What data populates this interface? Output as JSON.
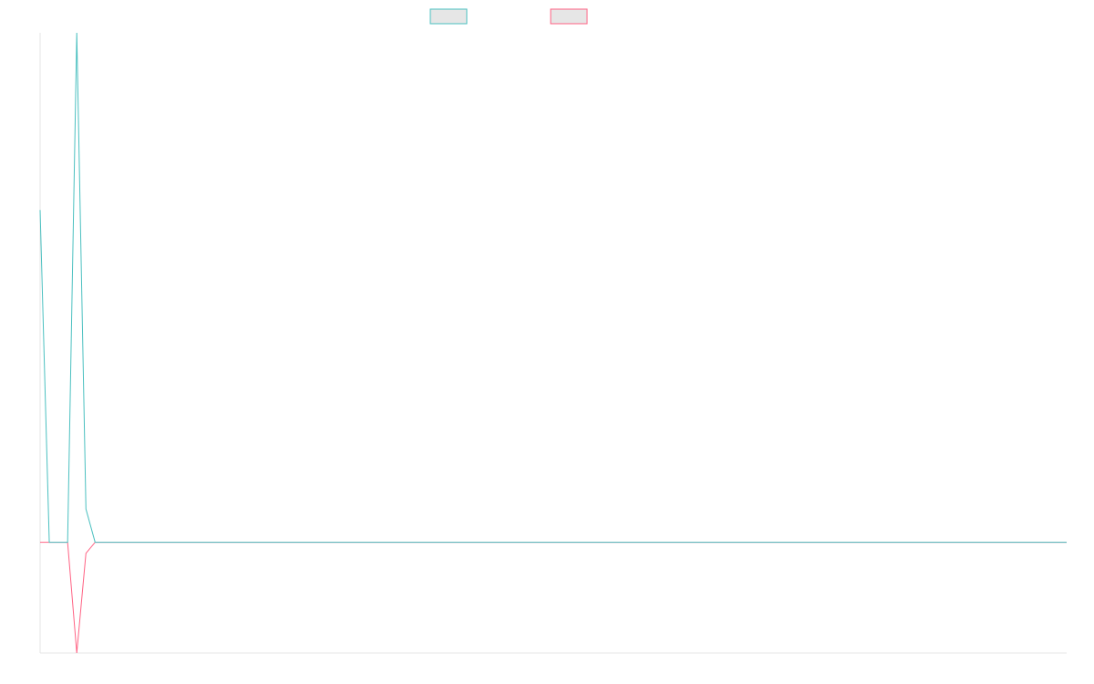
{
  "chart_data": {
    "type": "line",
    "title": "",
    "xlabel": "",
    "ylabel": "",
    "grid": false,
    "legend_position": "top-center",
    "ylim": [
      -1,
      4.6
    ],
    "x": [
      0,
      1,
      2,
      3,
      4,
      5,
      6,
      7,
      8,
      9,
      10,
      11,
      12,
      13,
      14,
      15,
      16,
      17,
      18,
      19,
      20,
      21,
      22,
      23,
      24,
      25,
      26,
      27,
      28,
      29,
      30,
      31,
      32,
      33,
      34,
      35,
      36,
      37,
      38,
      39,
      40,
      41,
      42,
      43,
      44,
      45,
      46,
      47,
      48,
      49,
      50,
      51,
      52,
      53,
      54,
      55,
      56,
      57,
      58,
      59,
      60,
      61,
      62,
      63,
      64,
      65,
      66,
      67,
      68,
      69,
      70,
      71,
      72,
      73,
      74,
      75,
      76,
      77,
      78,
      79,
      80,
      81,
      82,
      83,
      84,
      85,
      86,
      87,
      88,
      89,
      90,
      91,
      92,
      93,
      94,
      95,
      96,
      97,
      98,
      99,
      100,
      101,
      102,
      103,
      104,
      105,
      106,
      107,
      108,
      109,
      110,
      111,
      112
    ],
    "series": [
      {
        "color": "#4bc0c0",
        "fill": "#e6e6e6",
        "values": [
          3,
          0,
          0,
          0,
          4.6,
          0.3,
          0,
          0,
          0,
          0,
          0,
          0,
          0,
          0,
          0,
          0,
          0,
          0,
          0,
          0,
          0,
          0,
          0,
          0,
          0,
          0,
          0,
          0,
          0,
          0,
          0,
          0,
          0,
          0,
          0,
          0,
          0,
          0,
          0,
          0,
          0,
          0,
          0,
          0,
          0,
          0,
          0,
          0,
          0,
          0,
          0,
          0,
          0,
          0,
          0,
          0,
          0,
          0,
          0,
          0,
          0,
          0,
          0,
          0,
          0,
          0,
          0,
          0,
          0,
          0,
          0,
          0,
          0,
          0,
          0,
          0,
          0,
          0,
          0,
          0,
          0,
          0,
          0,
          0,
          0,
          0,
          0,
          0,
          0,
          0,
          0,
          0,
          0,
          0,
          0,
          0,
          0,
          0,
          0,
          0,
          0,
          0,
          0,
          0,
          0,
          0,
          0,
          0,
          0,
          0,
          0,
          0,
          0
        ]
      },
      {
        "color": "#ff6384",
        "fill": "#e6e6e6",
        "values": [
          0,
          0,
          0,
          0,
          -1,
          -0.1,
          0,
          0,
          0,
          0,
          0,
          0,
          0,
          0,
          0,
          0,
          0,
          0,
          0,
          0,
          0,
          0,
          0,
          0,
          0,
          0,
          0,
          0,
          0,
          0,
          0,
          0,
          0,
          0,
          0,
          0,
          0,
          0,
          0,
          0,
          0,
          0,
          0,
          0,
          0,
          0,
          0,
          0,
          0,
          0,
          0,
          0,
          0,
          0,
          0,
          0,
          0,
          0,
          0,
          0,
          0,
          0,
          0,
          0,
          0,
          0,
          0,
          0,
          0,
          0,
          0,
          0,
          0,
          0,
          0,
          0,
          0,
          0,
          0,
          0,
          0,
          0,
          0,
          0,
          0,
          0,
          0,
          0,
          0,
          0,
          0,
          0,
          0,
          0,
          0,
          0,
          0,
          0,
          0,
          0,
          0,
          0,
          0,
          0,
          0,
          0,
          0,
          0,
          0,
          0,
          0,
          0,
          0
        ]
      }
    ]
  }
}
